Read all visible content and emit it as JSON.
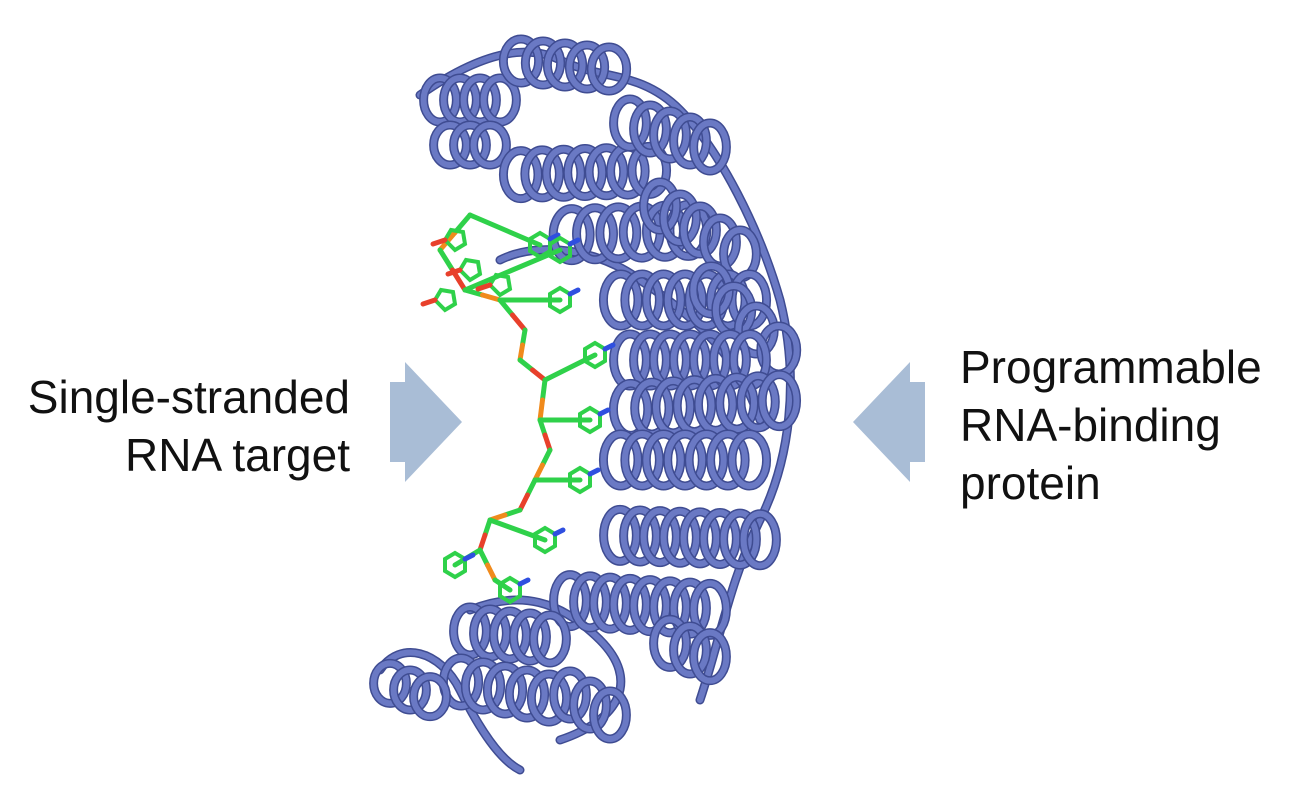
{
  "labels": {
    "left": [
      "Single-stranded",
      "RNA target"
    ],
    "right": [
      "Programmable",
      "RNA-binding",
      "protein"
    ]
  },
  "colors": {
    "background": "#ffffff",
    "text": "#111111",
    "arrow": "#a9bdd6",
    "protein": "#6a79c4",
    "protein_dark": "#3f4c92",
    "protein_light": "#9aa6e0",
    "rna_carbon": "#2fd14a",
    "rna_oxygen": "#e8402b",
    "rna_phosphate": "#f08a1c",
    "rna_nitrogen": "#2f4fe0"
  },
  "icons": {
    "left_arrow": "arrow-right-icon",
    "right_arrow": "arrow-left-icon",
    "structure": "protein-rna-ribbon-structure"
  }
}
